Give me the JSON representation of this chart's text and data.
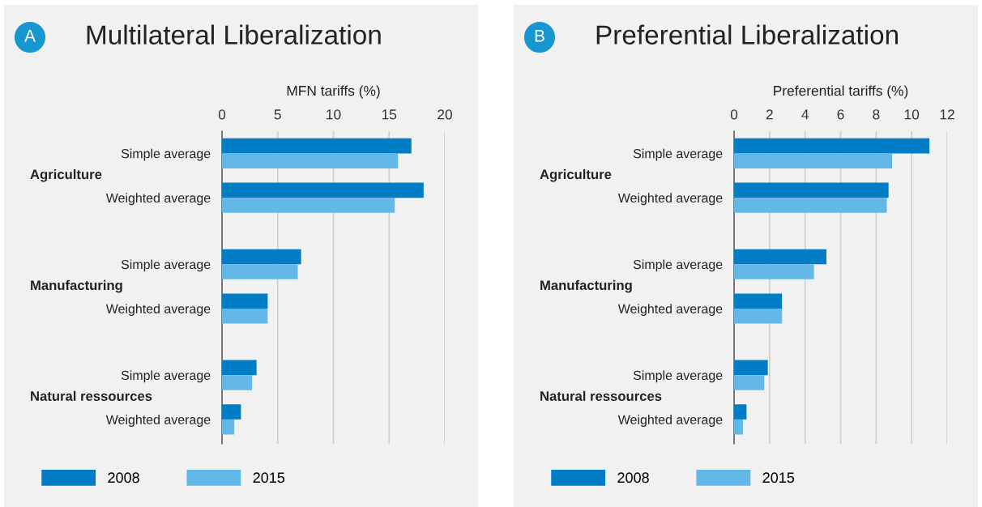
{
  "chart_data": [
    {
      "type": "bar",
      "orientation": "horizontal",
      "title": "Multilateral Liberalization",
      "xlabel": "MFN tariffs (%)",
      "annotations": [
        "A",
        "Agriculture",
        "Manufacturing",
        "Natural ressources"
      ],
      "categories": [
        "Simple average",
        "Weighted average",
        null,
        "Simple average",
        "Weighted average",
        null,
        "Simple average",
        "Weighted average"
      ],
      "series": [
        {
          "name": "2008",
          "color": "#007dc5",
          "values": [
            17.0,
            18.1,
            null,
            7.1,
            4.1,
            null,
            3.1,
            1.7
          ]
        },
        {
          "name": "2015",
          "color": "#63b8e8",
          "values": [
            15.8,
            15.5,
            null,
            6.8,
            4.1,
            null,
            2.7,
            1.1
          ]
        }
      ],
      "xlim": [
        0,
        20
      ],
      "xticks": [
        0,
        5,
        10,
        15,
        20
      ],
      "grid": "x",
      "legend": "bottom left"
    },
    {
      "type": "bar",
      "orientation": "horizontal",
      "title": "Preferential Liberalization",
      "xlabel": "Preferential tariffs (%)",
      "annotations": [
        "B",
        "Agriculture",
        "Manufacturing",
        "Natural ressources"
      ],
      "categories": [
        "Simple average",
        "Weighted average",
        null,
        "Simple average",
        "Weighted average",
        null,
        "Simple average",
        "Weighted average"
      ],
      "series": [
        {
          "name": "2008",
          "color": "#007dc5",
          "values": [
            11.0,
            8.7,
            null,
            5.2,
            2.7,
            null,
            1.9,
            0.7
          ]
        },
        {
          "name": "2015",
          "color": "#63b8e8",
          "values": [
            8.9,
            8.6,
            null,
            4.5,
            2.7,
            null,
            1.7,
            0.5
          ]
        }
      ],
      "xlim": [
        0,
        12
      ],
      "xticks": [
        0,
        2,
        4,
        6,
        8,
        10,
        12
      ],
      "grid": "x",
      "legend": "bottom left"
    }
  ]
}
